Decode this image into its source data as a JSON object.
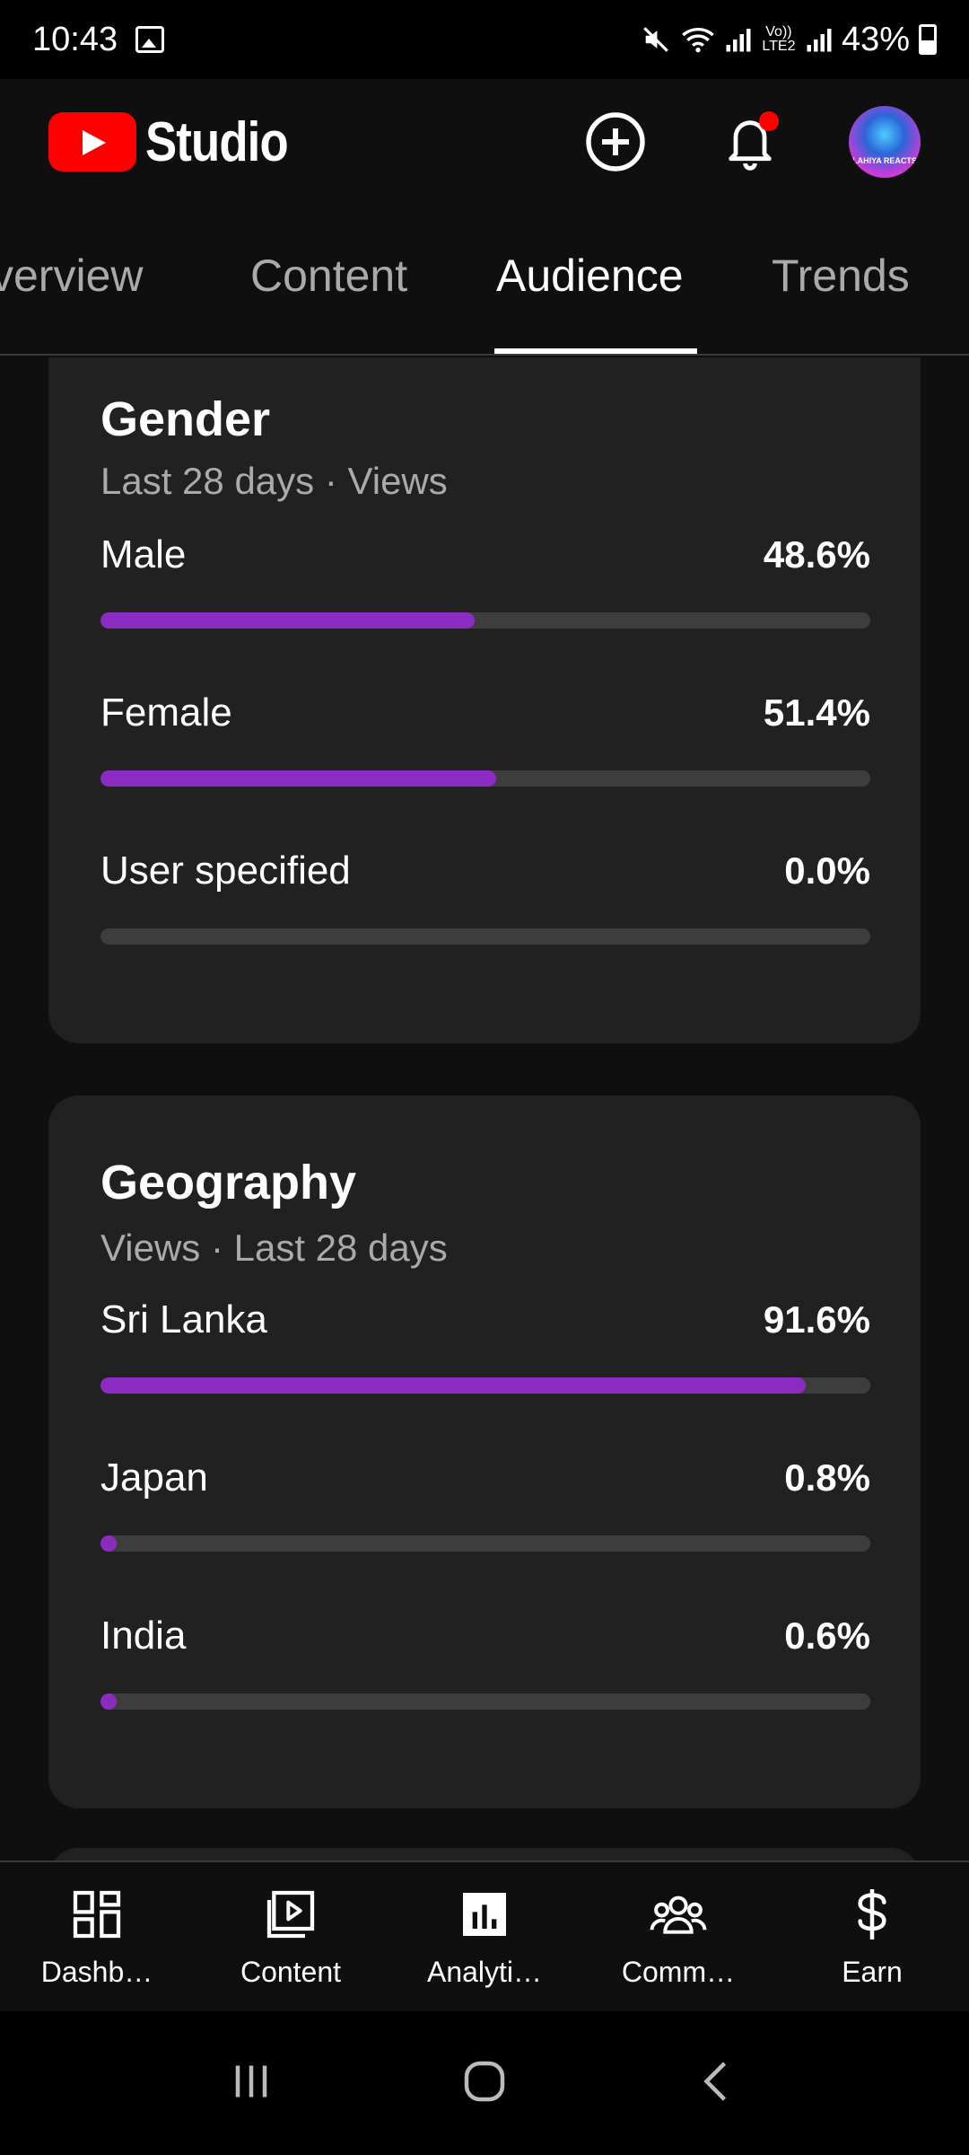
{
  "status_bar": {
    "time": "10:43",
    "battery": "43%",
    "network_label": "Vo)) LTE2"
  },
  "header": {
    "app_name": "Studio",
    "icons": [
      "create-icon",
      "bell-icon",
      "avatar"
    ],
    "avatar_text": "LAHIYA REACTS",
    "accent": "#ff0000"
  },
  "tabs": [
    {
      "label": "Overview",
      "visible_text": "verview"
    },
    {
      "label": "Content"
    },
    {
      "label": "Audience",
      "active": true
    },
    {
      "label": "Trends"
    }
  ],
  "gender_card": {
    "title": "Gender",
    "subtitle": "Last 28 days · Views",
    "rows": [
      {
        "label": "Male",
        "value": "48.6%",
        "pct": 48.6
      },
      {
        "label": "Female",
        "value": "51.4%",
        "pct": 51.4
      },
      {
        "label": "User specified",
        "value": "0.0%",
        "pct": 0.0
      }
    ]
  },
  "geo_card": {
    "title": "Geography",
    "subtitle": "Views · Last 28 days",
    "rows": [
      {
        "label": "Sri Lanka",
        "value": "91.6%",
        "pct": 91.6
      },
      {
        "label": "Japan",
        "value": "0.8%",
        "pct": 0.8
      },
      {
        "label": "India",
        "value": "0.6%",
        "pct": 0.6
      }
    ]
  },
  "bottom_nav": [
    {
      "label": "Dashb…",
      "icon": "dashboard-icon"
    },
    {
      "label": "Content",
      "icon": "content-icon"
    },
    {
      "label": "Analyti…",
      "icon": "analytics-icon",
      "active": true
    },
    {
      "label": "Comm…",
      "icon": "community-icon"
    },
    {
      "label": "Earn",
      "icon": "earn-icon"
    }
  ],
  "colors": {
    "bar_fill": "#8b2bc2",
    "bar_track": "#3d3d3d",
    "card_bg": "#212121",
    "background": "#0f0f0f"
  }
}
